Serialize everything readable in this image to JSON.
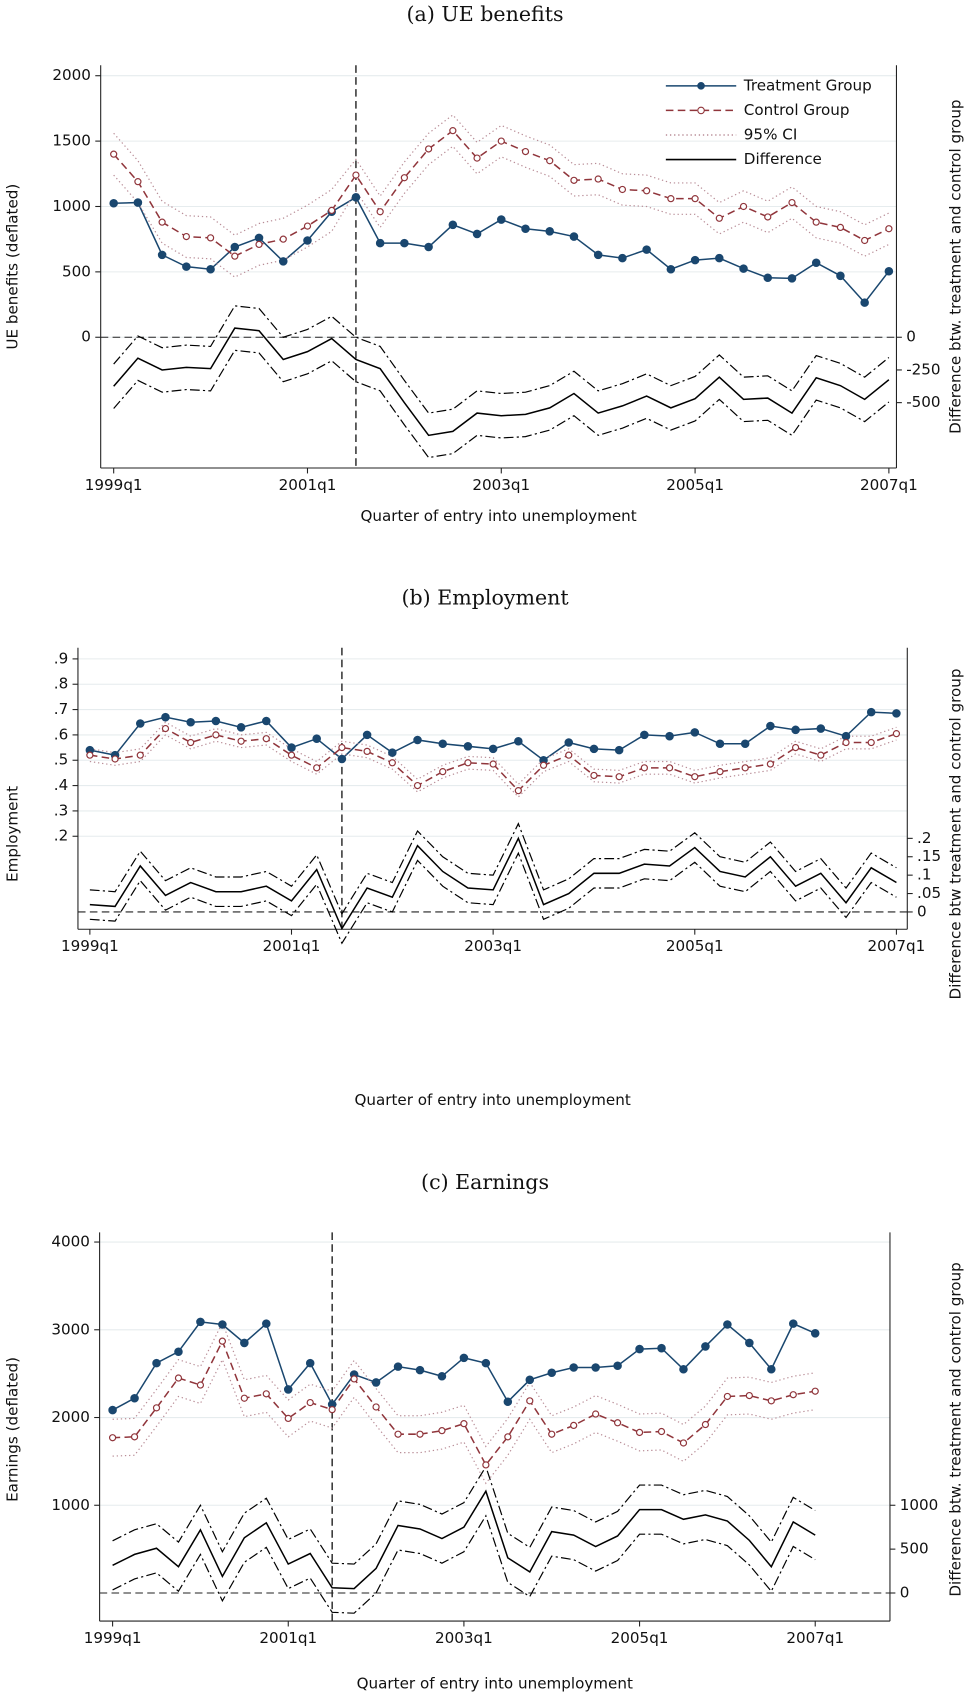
{
  "chart_data": [
    {
      "type": "line",
      "title": "(a) UE benefits",
      "xlabel": "Quarter of entry into unemployment",
      "ylabel": "UE benefits (deflated)",
      "y2label": "Difference btw. treatment and control group",
      "categories": [
        "1999q1",
        null,
        null,
        null,
        null,
        null,
        null,
        null,
        "2001q1",
        null,
        null,
        null,
        null,
        null,
        null,
        null,
        "2003q1",
        null,
        null,
        null,
        null,
        null,
        null,
        null,
        "2005q1",
        null,
        null,
        null,
        null,
        null,
        null,
        null,
        "2007q1"
      ],
      "series": [
        {
          "name": "Treatment Group",
          "color": "#1a476f",
          "style": "solid",
          "marker": "filled",
          "values": [
            1025,
            1030,
            630,
            540,
            520,
            690,
            760,
            580,
            740,
            960,
            1070,
            720,
            720,
            690,
            860,
            790,
            900,
            830,
            810,
            770,
            630,
            605,
            670,
            520,
            590,
            605,
            525,
            455,
            450,
            570,
            470,
            265,
            505
          ]
        },
        {
          "name": "Control Group",
          "color": "#90353b",
          "style": "dashed",
          "marker": "hollow",
          "values": [
            1400,
            1190,
            880,
            770,
            760,
            620,
            710,
            750,
            850,
            970,
            1240,
            960,
            1220,
            1440,
            1580,
            1370,
            1500,
            1420,
            1350,
            1200,
            1210,
            1130,
            1120,
            1060,
            1060,
            910,
            1000,
            920,
            1030,
            880,
            840,
            740,
            830
          ]
        },
        {
          "name": "95% CI",
          "color": "#b88c96",
          "style": "dotted",
          "lower": [
            1240,
            1030,
            720,
            610,
            600,
            460,
            550,
            590,
            690,
            810,
            1120,
            840,
            1100,
            1320,
            1460,
            1250,
            1380,
            1300,
            1230,
            1080,
            1090,
            1010,
            1000,
            940,
            940,
            790,
            880,
            800,
            910,
            760,
            720,
            620,
            710
          ],
          "upper": [
            1560,
            1350,
            1040,
            930,
            920,
            780,
            870,
            910,
            1010,
            1130,
            1360,
            1080,
            1340,
            1560,
            1700,
            1490,
            1620,
            1540,
            1470,
            1320,
            1330,
            1250,
            1240,
            1180,
            1180,
            1030,
            1120,
            1040,
            1150,
            1000,
            960,
            860,
            950
          ]
        },
        {
          "name": "Difference",
          "color": "#000000",
          "style": "solid",
          "axis": "y2",
          "values": [
            -375,
            -160,
            -250,
            -230,
            -240,
            70,
            50,
            -170,
            -110,
            -10,
            -170,
            -240,
            -500,
            -750,
            -720,
            -580,
            -600,
            -590,
            -540,
            -430,
            -580,
            -525,
            -450,
            -540,
            -470,
            -305,
            -475,
            -465,
            -580,
            -310,
            -370,
            -475,
            -325
          ]
        }
      ],
      "difference_ci": {
        "color": "#000000",
        "style": "dashdot",
        "lower": [
          -545,
          -330,
          -420,
          -400,
          -410,
          -100,
          -120,
          -340,
          -280,
          -180,
          -340,
          -410,
          -670,
          -920,
          -890,
          -750,
          -770,
          -760,
          -710,
          -600,
          -750,
          -695,
          -620,
          -710,
          -640,
          -475,
          -645,
          -635,
          -750,
          -480,
          -540,
          -645,
          -495
        ],
        "upper": [
          -205,
          10,
          -80,
          -60,
          -70,
          240,
          220,
          0,
          60,
          160,
          0,
          -70,
          -330,
          -580,
          -550,
          -410,
          -430,
          -420,
          -370,
          -260,
          -410,
          -355,
          -280,
          -370,
          -300,
          -135,
          -305,
          -295,
          -410,
          -140,
          -200,
          -305,
          -155
        ]
      },
      "vline": 10,
      "ylim": [
        -1000,
        2080
      ],
      "yticks": [
        0,
        500,
        1000,
        1500,
        2000
      ],
      "y2lim": [
        -1000,
        2080
      ],
      "y2ticks": [
        0,
        -250,
        -500
      ],
      "grid": true,
      "legend": "top-right"
    },
    {
      "type": "line",
      "title": "(b) Employment",
      "xlabel": "Quarter of entry into unemployment",
      "ylabel": "Employment",
      "y2label": "Difference btw treatment and control group",
      "categories": [
        "1999q1",
        null,
        null,
        null,
        null,
        null,
        null,
        null,
        "2001q1",
        null,
        null,
        null,
        null,
        null,
        null,
        null,
        "2003q1",
        null,
        null,
        null,
        null,
        null,
        null,
        null,
        "2005q1",
        null,
        null,
        null,
        null,
        null,
        null,
        null,
        "2007q1"
      ],
      "series": [
        {
          "name": "Treatment Group",
          "color": "#1a476f",
          "style": "solid",
          "marker": "filled",
          "values": [
            0.54,
            0.52,
            0.645,
            0.67,
            0.65,
            0.655,
            0.63,
            0.655,
            0.55,
            0.585,
            0.505,
            0.6,
            0.53,
            0.58,
            0.565,
            0.555,
            0.545,
            0.575,
            0.5,
            0.57,
            0.545,
            0.54,
            0.6,
            0.595,
            0.61,
            0.565,
            0.565,
            0.635,
            0.62,
            0.625,
            0.595,
            0.69,
            0.685
          ]
        },
        {
          "name": "Control Group",
          "color": "#90353b",
          "style": "dashed",
          "marker": "hollow",
          "values": [
            0.52,
            0.505,
            0.52,
            0.625,
            0.57,
            0.6,
            0.575,
            0.585,
            0.52,
            0.47,
            0.55,
            0.535,
            0.49,
            0.4,
            0.455,
            0.49,
            0.485,
            0.38,
            0.48,
            0.52,
            0.44,
            0.435,
            0.47,
            0.47,
            0.435,
            0.455,
            0.47,
            0.485,
            0.55,
            0.52,
            0.57,
            0.57,
            0.605
          ]
        },
        {
          "name": "95% CI",
          "color": "#b88c96",
          "style": "dotted",
          "lower": [
            0.495,
            0.48,
            0.495,
            0.6,
            0.545,
            0.575,
            0.55,
            0.56,
            0.495,
            0.445,
            0.525,
            0.51,
            0.465,
            0.375,
            0.43,
            0.465,
            0.46,
            0.355,
            0.455,
            0.495,
            0.415,
            0.41,
            0.445,
            0.445,
            0.41,
            0.43,
            0.445,
            0.46,
            0.525,
            0.495,
            0.545,
            0.545,
            0.58
          ],
          "upper": [
            0.545,
            0.53,
            0.545,
            0.65,
            0.595,
            0.625,
            0.6,
            0.61,
            0.545,
            0.495,
            0.575,
            0.56,
            0.515,
            0.425,
            0.48,
            0.515,
            0.51,
            0.405,
            0.505,
            0.545,
            0.465,
            0.46,
            0.495,
            0.495,
            0.46,
            0.48,
            0.495,
            0.51,
            0.575,
            0.545,
            0.595,
            0.595,
            0.63
          ]
        },
        {
          "name": "Difference",
          "color": "#000000",
          "style": "solid",
          "axis": "y2",
          "values": [
            0.02,
            0.015,
            0.125,
            0.045,
            0.08,
            0.055,
            0.055,
            0.07,
            0.03,
            0.115,
            -0.045,
            0.065,
            0.04,
            0.18,
            0.11,
            0.065,
            0.06,
            0.2,
            0.02,
            0.05,
            0.105,
            0.105,
            0.13,
            0.125,
            0.175,
            0.11,
            0.095,
            0.15,
            0.07,
            0.105,
            0.025,
            0.12,
            0.08
          ]
        }
      ],
      "difference_ci": {
        "color": "#000000",
        "style": "dashdot",
        "lower": [
          -0.02,
          -0.025,
          0.085,
          0.005,
          0.04,
          0.015,
          0.015,
          0.03,
          -0.01,
          0.075,
          -0.085,
          0.025,
          0,
          0.14,
          0.07,
          0.025,
          0.02,
          0.16,
          -0.02,
          0.01,
          0.065,
          0.065,
          0.09,
          0.085,
          0.135,
          0.07,
          0.055,
          0.11,
          0.03,
          0.065,
          -0.015,
          0.08,
          0.04
        ],
        "upper": [
          0.06,
          0.055,
          0.165,
          0.085,
          0.12,
          0.095,
          0.095,
          0.11,
          0.07,
          0.155,
          -0.005,
          0.105,
          0.08,
          0.22,
          0.15,
          0.105,
          0.1,
          0.24,
          0.06,
          0.09,
          0.145,
          0.145,
          0.17,
          0.165,
          0.215,
          0.15,
          0.135,
          0.19,
          0.11,
          0.145,
          0.065,
          0.16,
          0.12
        ]
      },
      "vline": 10,
      "ylim": [
        -0.167,
        0.944
      ],
      "yticks": [
        {
          "value": 0.2,
          "label": ".2"
        },
        {
          "value": 0.3,
          "label": ".3"
        },
        {
          "value": 0.4,
          "label": ".4"
        },
        {
          "value": 0.5,
          "label": ".5"
        },
        {
          "value": 0.6,
          "label": ".6"
        },
        {
          "value": 0.7,
          "label": ".7"
        },
        {
          "value": 0.8,
          "label": ".8"
        },
        {
          "value": 0.9,
          "label": ".9"
        }
      ],
      "y2lim": [
        -0.047,
        0.718
      ],
      "y2ticks": [
        0,
        {
          "value": 0.05,
          "label": ".05"
        },
        {
          "value": 0.1,
          "label": ".1"
        },
        {
          "value": 0.15,
          "label": ".15"
        },
        {
          "value": 0.2,
          "label": ".2"
        }
      ],
      "grid": true
    },
    {
      "type": "line",
      "title": "(c) Earnings",
      "xlabel": "Quarter of entry into unemployment",
      "ylabel": "Earnings (deflated)",
      "y2label": "Difference btw. treatment and control group",
      "categories": [
        "1999q1",
        null,
        null,
        null,
        null,
        null,
        null,
        null,
        "2001q1",
        null,
        null,
        null,
        null,
        null,
        null,
        null,
        "2003q1",
        null,
        null,
        null,
        null,
        null,
        null,
        null,
        "2005q1",
        null,
        null,
        null,
        null,
        null,
        null,
        null,
        "2007q1"
      ],
      "series": [
        {
          "name": "Treatment Group",
          "color": "#1a476f",
          "style": "solid",
          "marker": "filled",
          "values": [
            2085,
            2220,
            2620,
            2750,
            3090,
            3060,
            2850,
            3070,
            2320,
            2620,
            2150,
            2490,
            2400,
            2580,
            2540,
            2470,
            2680,
            2620,
            2180,
            2430,
            2510,
            2570,
            2570,
            2590,
            2780,
            2790,
            2550,
            2810,
            3060,
            2850,
            2550,
            3070,
            2960
          ]
        },
        {
          "name": "Control Group",
          "color": "#90353b",
          "style": "dashed",
          "marker": "hollow",
          "values": [
            1770,
            1780,
            2110,
            2450,
            2370,
            2870,
            2220,
            2270,
            1990,
            2170,
            2090,
            2440,
            2120,
            1810,
            1810,
            1850,
            1930,
            1460,
            1780,
            2190,
            1810,
            1910,
            2040,
            1940,
            1830,
            1840,
            1710,
            1920,
            2240,
            2250,
            2190,
            2260,
            2300
          ]
        },
        {
          "name": "95% CI",
          "color": "#b88c96",
          "style": "dotted",
          "lower": [
            1560,
            1570,
            1900,
            2240,
            2160,
            2660,
            2010,
            2060,
            1780,
            1960,
            1880,
            2230,
            1910,
            1600,
            1600,
            1640,
            1720,
            1250,
            1570,
            1980,
            1600,
            1700,
            1830,
            1730,
            1620,
            1630,
            1500,
            1710,
            2030,
            2040,
            1980,
            2050,
            2090
          ],
          "upper": [
            1980,
            1990,
            2320,
            2660,
            2580,
            3080,
            2430,
            2480,
            2200,
            2380,
            2300,
            2650,
            2330,
            2020,
            2020,
            2060,
            2140,
            1670,
            1990,
            2400,
            2020,
            2120,
            2250,
            2150,
            2040,
            2050,
            1920,
            2130,
            2450,
            2460,
            2400,
            2470,
            2510
          ]
        },
        {
          "name": "Difference",
          "color": "#000000",
          "style": "solid",
          "axis": "y2",
          "values": [
            315,
            440,
            510,
            300,
            720,
            190,
            630,
            800,
            330,
            450,
            60,
            50,
            280,
            770,
            730,
            620,
            750,
            1160,
            400,
            240,
            700,
            660,
            530,
            650,
            950,
            950,
            840,
            890,
            820,
            600,
            300,
            810,
            660
          ]
        }
      ],
      "difference_ci": {
        "color": "#000000",
        "style": "dashdot",
        "lower": [
          35,
          160,
          230,
          20,
          440,
          -90,
          350,
          520,
          50,
          170,
          -220,
          -230,
          0,
          490,
          450,
          340,
          470,
          880,
          120,
          -40,
          420,
          380,
          250,
          370,
          670,
          670,
          560,
          610,
          540,
          320,
          20,
          530,
          380
        ],
        "upper": [
          595,
          720,
          790,
          580,
          1000,
          470,
          910,
          1080,
          610,
          730,
          340,
          330,
          560,
          1050,
          1010,
          900,
          1030,
          1440,
          680,
          520,
          980,
          940,
          810,
          930,
          1230,
          1230,
          1120,
          1170,
          1100,
          880,
          580,
          1090,
          940
        ]
      },
      "vline": 10,
      "ylim": [
        -320,
        4110
      ],
      "yticks": [
        1000,
        2000,
        3000,
        4000
      ],
      "y2lim": [
        -320,
        4110
      ],
      "y2ticks": [
        0,
        500,
        1000
      ],
      "grid": true
    }
  ]
}
